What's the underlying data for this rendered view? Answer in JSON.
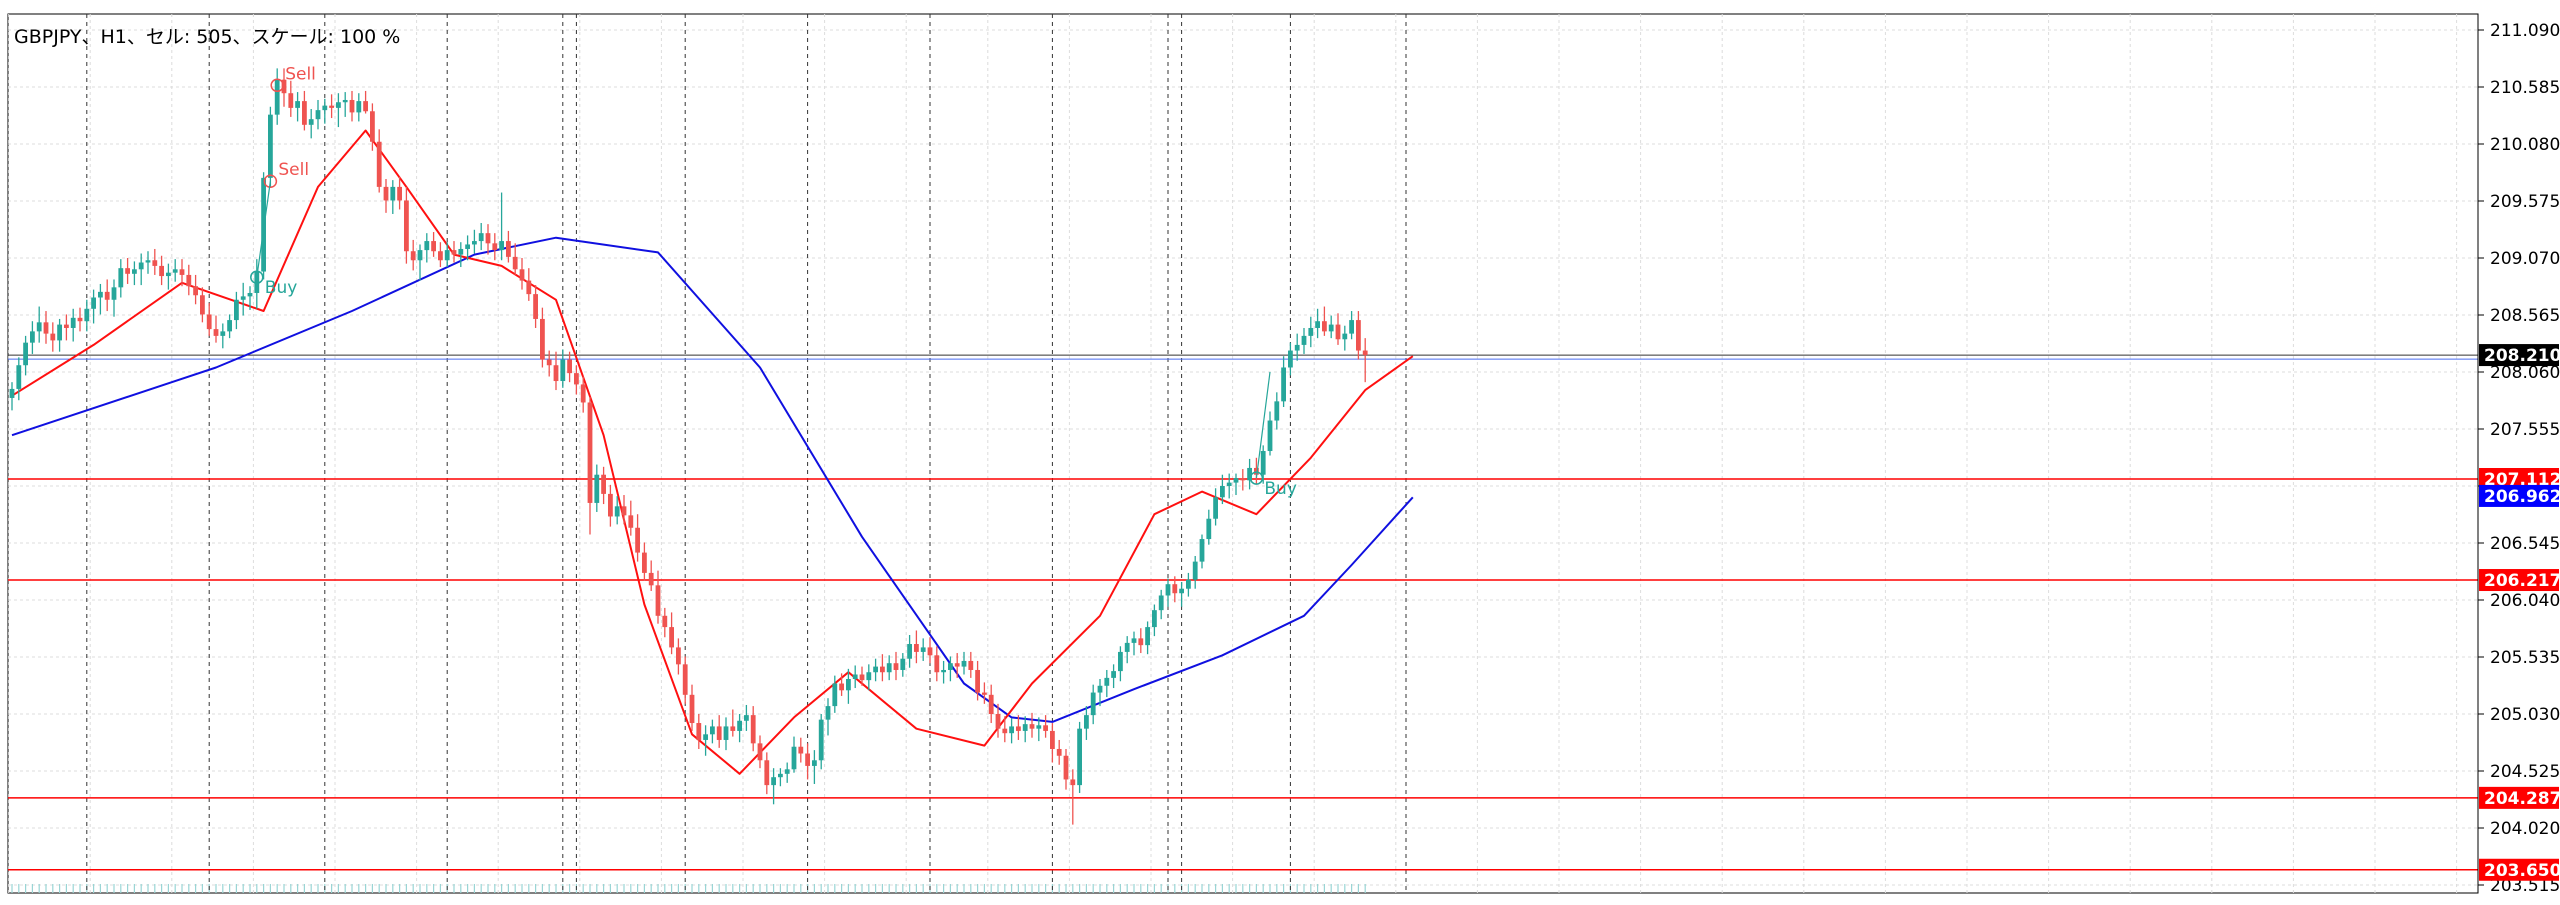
{
  "header": {
    "info": "GBPJPY、H1、セル: 505、スケール: 100 %"
  },
  "colors": {
    "background": "#ffffff",
    "grid": "#dcdcdc",
    "bull_candle": "#26a69a",
    "bear_candle": "#ef5350",
    "ma_fast": "#ff1010",
    "ma_slow": "#1010e0",
    "hline": "#ff0000",
    "buy_trade": "#26a69a",
    "sell_trade": "#ef5350",
    "axis_text": "#000000",
    "label_price_bg": "#000000",
    "label_red_bg": "#ff0000",
    "label_blue_bg": "#0000ff",
    "volume": "#9ad5d5"
  },
  "chart_data": {
    "type": "candlestick",
    "symbol": "GBPJPY",
    "timeframe": "H1",
    "ylim": [
      203.515,
      211.09
    ],
    "y_ticks": [
      "211.090",
      "210.585",
      "210.080",
      "209.575",
      "209.070",
      "208.565",
      "208.060",
      "207.555",
      "207.050",
      "206.545",
      "206.040",
      "205.535",
      "205.030",
      "204.525",
      "204.020",
      "203.515"
    ],
    "horizontal_lines": [
      {
        "price": 207.112,
        "label": "207.112"
      },
      {
        "price": 206.217,
        "label": "206.217"
      },
      {
        "price": 204.287,
        "label": "204.287"
      },
      {
        "price": 203.65,
        "label": "203.650"
      }
    ],
    "current_price": {
      "value": 208.21,
      "label": "208.210"
    },
    "ma_slow_last": {
      "value": 206.962,
      "label": "206.962"
    },
    "trade_markers": [
      {
        "type": "Sell",
        "label": "Sell",
        "bar_index": 39,
        "price": 210.6
      },
      {
        "type": "Sell",
        "label": "Sell",
        "bar_index": 38,
        "price": 209.75
      },
      {
        "type": "Buy",
        "label": "Buy",
        "bar_index": 36,
        "price": 208.9
      },
      {
        "type": "Buy",
        "label": "Buy",
        "bar_index": 183,
        "price": 207.12
      }
    ],
    "session_separators": [
      11,
      29,
      46,
      64,
      81,
      83,
      99,
      117,
      135,
      153,
      170,
      172,
      188,
      205
    ],
    "ma_slow": [
      [
        0,
        207.5
      ],
      [
        30,
        208.1
      ],
      [
        50,
        208.6
      ],
      [
        68,
        209.1
      ],
      [
        80,
        209.25
      ],
      [
        95,
        209.12
      ],
      [
        110,
        208.1
      ],
      [
        125,
        206.6
      ],
      [
        140,
        205.3
      ],
      [
        147,
        205.0
      ],
      [
        153,
        204.96
      ],
      [
        165,
        205.25
      ],
      [
        178,
        205.55
      ],
      [
        190,
        205.9
      ],
      [
        197,
        206.35
      ],
      [
        206,
        206.95
      ]
    ],
    "ma_fast": [
      [
        0,
        207.85
      ],
      [
        12,
        208.3
      ],
      [
        25,
        208.85
      ],
      [
        37,
        208.6
      ],
      [
        45,
        209.7
      ],
      [
        52,
        210.2
      ],
      [
        58,
        209.7
      ],
      [
        65,
        209.1
      ],
      [
        72,
        209.0
      ],
      [
        80,
        208.7
      ],
      [
        87,
        207.5
      ],
      [
        93,
        206.0
      ],
      [
        100,
        204.85
      ],
      [
        107,
        204.5
      ],
      [
        115,
        205.0
      ],
      [
        123,
        205.4
      ],
      [
        133,
        204.9
      ],
      [
        143,
        204.75
      ],
      [
        150,
        205.3
      ],
      [
        160,
        205.9
      ],
      [
        168,
        206.8
      ],
      [
        175,
        207.0
      ],
      [
        183,
        206.8
      ],
      [
        191,
        207.3
      ],
      [
        199,
        207.9
      ],
      [
        206,
        208.2
      ]
    ],
    "candles_ohlc": [
      [
        207.83,
        207.97,
        207.72,
        207.91
      ],
      [
        207.91,
        208.19,
        207.81,
        208.12
      ],
      [
        208.12,
        208.38,
        208.03,
        208.32
      ],
      [
        208.32,
        208.51,
        208.22,
        208.42
      ],
      [
        208.42,
        208.64,
        208.32,
        208.5
      ],
      [
        208.5,
        208.6,
        208.31,
        208.4
      ],
      [
        208.4,
        208.5,
        208.24,
        208.34
      ],
      [
        208.34,
        208.53,
        208.24,
        208.48
      ],
      [
        208.48,
        208.57,
        208.34,
        208.45
      ],
      [
        208.45,
        208.62,
        208.33,
        208.54
      ],
      [
        208.54,
        208.63,
        208.42,
        208.51
      ],
      [
        208.51,
        208.7,
        208.42,
        208.62
      ],
      [
        208.62,
        208.79,
        208.49,
        208.72
      ],
      [
        208.72,
        208.84,
        208.57,
        208.77
      ],
      [
        208.77,
        208.88,
        208.6,
        208.7
      ],
      [
        208.7,
        208.88,
        208.55,
        208.81
      ],
      [
        208.81,
        209.06,
        208.72,
        208.98
      ],
      [
        208.98,
        209.07,
        208.84,
        208.93
      ],
      [
        208.93,
        209.04,
        208.83,
        208.97
      ],
      [
        208.97,
        209.11,
        208.83,
        209.03
      ],
      [
        209.03,
        209.13,
        208.93,
        209.05
      ],
      [
        209.05,
        209.15,
        208.92,
        209.0
      ],
      [
        209.0,
        209.09,
        208.83,
        208.91
      ],
      [
        208.91,
        209.02,
        208.79,
        208.94
      ],
      [
        208.94,
        209.06,
        208.86,
        208.97
      ],
      [
        208.97,
        209.06,
        208.82,
        208.92
      ],
      [
        208.92,
        209.01,
        208.74,
        208.82
      ],
      [
        208.82,
        208.92,
        208.66,
        208.74
      ],
      [
        208.74,
        208.81,
        208.5,
        208.57
      ],
      [
        208.57,
        208.67,
        208.38,
        208.44
      ],
      [
        208.44,
        208.56,
        208.32,
        208.38
      ],
      [
        208.38,
        208.49,
        208.27,
        208.42
      ],
      [
        208.42,
        208.57,
        208.36,
        208.52
      ],
      [
        208.52,
        208.77,
        208.44,
        208.7
      ],
      [
        208.7,
        208.85,
        208.56,
        208.73
      ],
      [
        208.73,
        208.82,
        208.61,
        208.76
      ],
      [
        208.76,
        209.06,
        208.62,
        208.95
      ],
      [
        208.95,
        209.83,
        208.88,
        209.78
      ],
      [
        209.78,
        210.41,
        209.7,
        210.34
      ],
      [
        210.34,
        210.75,
        210.25,
        210.65
      ],
      [
        210.65,
        210.75,
        210.41,
        210.53
      ],
      [
        210.53,
        210.64,
        210.32,
        210.4
      ],
      [
        210.4,
        210.54,
        210.28,
        210.46
      ],
      [
        210.46,
        210.55,
        210.2,
        210.25
      ],
      [
        210.25,
        210.39,
        210.13,
        210.3
      ],
      [
        210.3,
        210.47,
        210.21,
        210.38
      ],
      [
        210.38,
        210.48,
        210.26,
        210.42
      ],
      [
        210.42,
        210.52,
        210.31,
        210.4
      ],
      [
        210.4,
        210.53,
        210.23,
        210.45
      ],
      [
        210.45,
        210.54,
        210.32,
        210.47
      ],
      [
        210.47,
        210.55,
        210.28,
        210.36
      ],
      [
        210.36,
        210.53,
        210.28,
        210.46
      ],
      [
        210.46,
        210.55,
        210.35,
        210.37
      ],
      [
        210.37,
        210.44,
        210.02,
        210.1
      ],
      [
        210.1,
        210.21,
        209.65,
        209.7
      ],
      [
        209.7,
        209.77,
        209.47,
        209.58
      ],
      [
        209.58,
        209.76,
        209.46,
        209.7
      ],
      [
        209.7,
        209.79,
        209.5,
        209.58
      ],
      [
        209.58,
        209.7,
        209.02,
        209.13
      ],
      [
        209.13,
        209.23,
        208.96,
        209.05
      ],
      [
        209.05,
        209.19,
        208.87,
        209.14
      ],
      [
        209.14,
        209.29,
        209.03,
        209.22
      ],
      [
        209.22,
        209.3,
        209.08,
        209.13
      ],
      [
        209.13,
        209.21,
        208.99,
        209.05
      ],
      [
        209.05,
        209.21,
        208.99,
        209.14
      ],
      [
        209.14,
        209.22,
        209.03,
        209.1
      ],
      [
        209.1,
        209.21,
        208.99,
        209.15
      ],
      [
        209.15,
        209.27,
        209.05,
        209.19
      ],
      [
        209.19,
        209.32,
        209.11,
        209.22
      ],
      [
        209.22,
        209.38,
        209.14,
        209.29
      ],
      [
        209.29,
        209.37,
        209.1,
        209.2
      ],
      [
        209.2,
        209.29,
        209.05,
        209.14
      ],
      [
        209.14,
        209.65,
        209.05,
        209.22
      ],
      [
        209.22,
        209.31,
        209.03,
        209.08
      ],
      [
        209.08,
        209.2,
        208.92,
        208.97
      ],
      [
        208.97,
        209.07,
        208.79,
        208.87
      ],
      [
        208.87,
        208.98,
        208.69,
        208.75
      ],
      [
        208.75,
        208.83,
        208.45,
        208.53
      ],
      [
        208.53,
        208.63,
        208.1,
        208.17
      ],
      [
        208.17,
        208.25,
        208.02,
        208.12
      ],
      [
        208.12,
        208.24,
        207.9,
        207.98
      ],
      [
        207.98,
        208.26,
        207.92,
        208.17
      ],
      [
        208.17,
        208.24,
        207.97,
        208.05
      ],
      [
        208.05,
        208.12,
        207.86,
        207.95
      ],
      [
        207.95,
        208.02,
        207.7,
        207.79
      ],
      [
        207.79,
        207.84,
        206.62,
        206.9
      ],
      [
        206.9,
        207.24,
        206.82,
        207.15
      ],
      [
        207.15,
        207.22,
        206.89,
        206.98
      ],
      [
        206.98,
        207.06,
        206.69,
        206.78
      ],
      [
        206.78,
        206.96,
        206.71,
        206.87
      ],
      [
        206.87,
        206.97,
        206.71,
        206.79
      ],
      [
        206.79,
        206.92,
        206.61,
        206.68
      ],
      [
        206.68,
        206.8,
        206.38,
        206.46
      ],
      [
        206.46,
        206.55,
        206.21,
        206.28
      ],
      [
        206.28,
        206.39,
        206.12,
        206.17
      ],
      [
        206.17,
        206.3,
        205.83,
        205.9
      ],
      [
        205.9,
        205.97,
        205.71,
        205.8
      ],
      [
        205.8,
        205.93,
        205.56,
        205.62
      ],
      [
        205.62,
        205.7,
        205.38,
        205.47
      ],
      [
        205.47,
        205.54,
        205.12,
        205.2
      ],
      [
        205.2,
        205.29,
        204.88,
        204.95
      ],
      [
        204.95,
        205.03,
        204.72,
        204.8
      ],
      [
        204.8,
        204.93,
        204.66,
        204.85
      ],
      [
        204.85,
        204.98,
        204.77,
        204.92
      ],
      [
        204.92,
        205.02,
        204.73,
        204.8
      ],
      [
        204.8,
        205.0,
        204.71,
        204.92
      ],
      [
        204.92,
        205.07,
        204.83,
        204.88
      ],
      [
        204.88,
        205.03,
        204.78,
        204.97
      ],
      [
        204.97,
        205.11,
        204.88,
        205.02
      ],
      [
        205.02,
        205.1,
        204.7,
        204.77
      ],
      [
        204.77,
        204.84,
        204.55,
        204.62
      ],
      [
        204.62,
        204.69,
        204.32,
        204.4
      ],
      [
        204.4,
        204.55,
        204.23,
        204.47
      ],
      [
        204.47,
        204.55,
        204.39,
        204.5
      ],
      [
        204.5,
        204.6,
        204.42,
        204.54
      ],
      [
        204.54,
        204.83,
        204.51,
        204.74
      ],
      [
        204.74,
        204.82,
        204.6,
        204.68
      ],
      [
        204.68,
        204.77,
        204.45,
        204.57
      ],
      [
        204.57,
        204.71,
        204.41,
        204.62
      ],
      [
        204.62,
        205.03,
        204.54,
        204.98
      ],
      [
        204.98,
        205.17,
        204.84,
        205.1
      ],
      [
        205.1,
        205.37,
        205.04,
        205.3
      ],
      [
        205.3,
        205.39,
        205.19,
        205.24
      ],
      [
        205.24,
        205.43,
        205.12,
        205.34
      ],
      [
        205.34,
        205.46,
        205.26,
        205.38
      ],
      [
        205.38,
        205.45,
        205.28,
        205.33
      ],
      [
        205.33,
        205.47,
        205.24,
        205.4
      ],
      [
        205.4,
        205.52,
        205.32,
        205.45
      ],
      [
        205.45,
        205.56,
        205.32,
        205.4
      ],
      [
        205.4,
        205.55,
        205.33,
        205.48
      ],
      [
        205.48,
        205.58,
        205.33,
        205.42
      ],
      [
        205.42,
        205.57,
        205.36,
        205.52
      ],
      [
        205.52,
        205.73,
        205.44,
        205.65
      ],
      [
        205.65,
        205.77,
        205.48,
        205.58
      ],
      [
        205.58,
        205.7,
        205.5,
        205.62
      ],
      [
        205.62,
        205.71,
        205.48,
        205.55
      ],
      [
        205.55,
        205.63,
        205.32,
        205.4
      ],
      [
        205.4,
        205.5,
        205.3,
        205.42
      ],
      [
        205.42,
        205.54,
        205.32,
        205.48
      ],
      [
        205.48,
        205.57,
        205.35,
        205.45
      ],
      [
        205.45,
        205.58,
        205.38,
        205.5
      ],
      [
        205.5,
        205.58,
        205.35,
        205.42
      ],
      [
        205.42,
        205.5,
        205.15,
        205.22
      ],
      [
        205.22,
        205.31,
        205.12,
        205.2
      ],
      [
        205.2,
        205.29,
        204.95,
        205.03
      ],
      [
        205.03,
        205.12,
        204.82,
        204.9
      ],
      [
        204.9,
        205.01,
        204.78,
        204.86
      ],
      [
        204.86,
        204.99,
        204.77,
        204.92
      ],
      [
        204.92,
        205.02,
        204.8,
        204.88
      ],
      [
        204.88,
        205.01,
        204.78,
        204.94
      ],
      [
        204.94,
        205.04,
        204.82,
        204.9
      ],
      [
        204.9,
        205.0,
        204.79,
        204.93
      ],
      [
        204.93,
        205.02,
        204.82,
        204.88
      ],
      [
        204.88,
        204.95,
        204.6,
        204.72
      ],
      [
        204.72,
        204.8,
        204.58,
        204.66
      ],
      [
        204.66,
        204.72,
        204.36,
        204.45
      ],
      [
        204.45,
        204.54,
        204.05,
        204.4
      ],
      [
        204.4,
        204.96,
        204.33,
        204.9
      ],
      [
        204.9,
        205.1,
        204.8,
        205.02
      ],
      [
        205.02,
        205.29,
        204.94,
        205.22
      ],
      [
        205.22,
        205.34,
        205.1,
        205.28
      ],
      [
        205.28,
        205.42,
        205.18,
        205.35
      ],
      [
        205.35,
        205.47,
        205.26,
        205.41
      ],
      [
        205.41,
        205.63,
        205.32,
        205.58
      ],
      [
        205.58,
        205.72,
        205.48,
        205.66
      ],
      [
        205.66,
        205.76,
        205.55,
        205.7
      ],
      [
        205.7,
        205.79,
        205.57,
        205.64
      ],
      [
        205.64,
        205.85,
        205.56,
        205.8
      ],
      [
        205.8,
        206.0,
        205.72,
        205.95
      ],
      [
        205.95,
        206.13,
        205.87,
        206.08
      ],
      [
        206.08,
        206.23,
        205.98,
        206.18
      ],
      [
        206.18,
        206.25,
        206.02,
        206.1
      ],
      [
        206.1,
        206.2,
        205.98,
        206.14
      ],
      [
        206.14,
        206.28,
        206.07,
        206.22
      ],
      [
        206.22,
        206.43,
        206.14,
        206.38
      ],
      [
        206.38,
        206.62,
        206.32,
        206.58
      ],
      [
        206.58,
        206.84,
        206.53,
        206.76
      ],
      [
        206.76,
        207.03,
        206.7,
        206.95
      ],
      [
        206.95,
        207.15,
        206.89,
        207.05
      ],
      [
        207.05,
        207.16,
        206.94,
        207.08
      ],
      [
        207.08,
        207.16,
        206.97,
        207.12
      ],
      [
        207.12,
        207.2,
        207.01,
        207.1
      ],
      [
        207.1,
        207.29,
        207.02,
        207.21
      ],
      [
        207.21,
        207.3,
        207.07,
        207.15
      ],
      [
        207.15,
        207.41,
        207.07,
        207.36
      ],
      [
        207.36,
        207.71,
        207.32,
        207.63
      ],
      [
        207.63,
        207.88,
        207.55,
        207.8
      ],
      [
        207.8,
        208.2,
        207.75,
        208.1
      ],
      [
        208.1,
        208.32,
        208.03,
        208.25
      ],
      [
        208.25,
        208.4,
        208.16,
        208.3
      ],
      [
        208.3,
        208.45,
        208.22,
        208.38
      ],
      [
        208.38,
        208.55,
        208.28,
        208.45
      ],
      [
        208.45,
        208.62,
        208.36,
        208.51
      ],
      [
        208.51,
        208.64,
        208.38,
        208.42
      ],
      [
        208.42,
        208.56,
        208.36,
        208.48
      ],
      [
        208.48,
        208.58,
        208.3,
        208.35
      ],
      [
        208.35,
        208.47,
        208.25,
        208.4
      ],
      [
        208.4,
        208.6,
        208.35,
        208.52
      ],
      [
        208.52,
        208.6,
        208.17,
        208.25
      ],
      [
        208.25,
        208.36,
        207.97,
        208.21
      ]
    ]
  }
}
